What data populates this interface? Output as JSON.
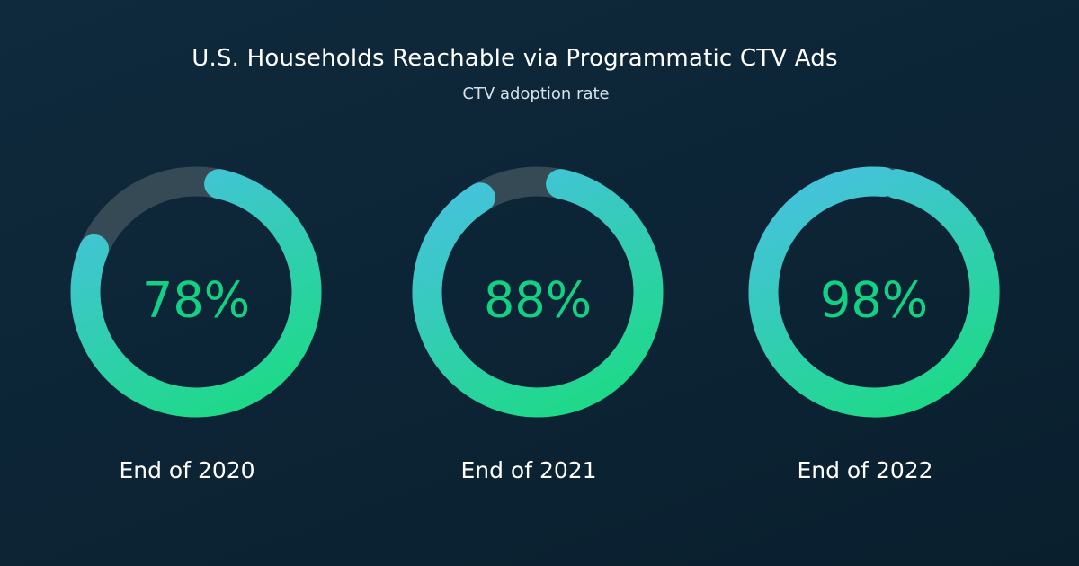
{
  "chart_data": {
    "type": "pie",
    "title": "U.S. Households Reachable via Programmatic CTV Ads",
    "subtitle": "CTV adoption rate",
    "series": [
      {
        "label": "End of 2020",
        "value": 78,
        "display": "78%"
      },
      {
        "label": "End of 2021",
        "value": 88,
        "display": "88%"
      },
      {
        "label": "End of 2022",
        "value": 98,
        "display": "98%"
      }
    ],
    "max": 100
  },
  "colors": {
    "track": "#354a55",
    "arc_start": "#1fd98a",
    "arc_end": "#45c2dc",
    "value_text": "#13d184"
  }
}
